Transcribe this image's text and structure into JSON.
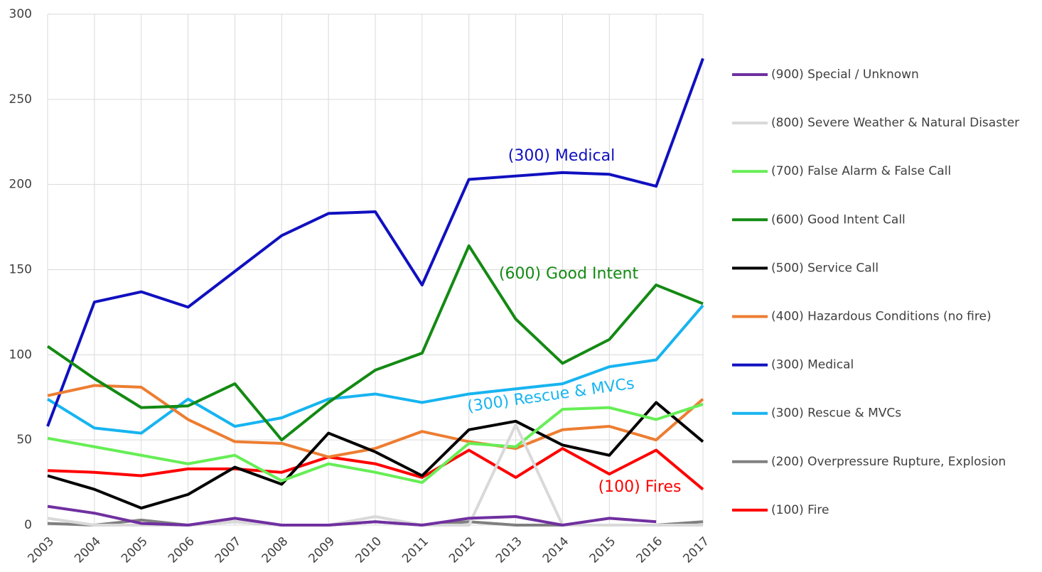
{
  "chart_data": {
    "type": "line",
    "categories": [
      "2003",
      "2004",
      "2005",
      "2006",
      "2007",
      "2008",
      "2009",
      "2010",
      "2011",
      "2012",
      "2013",
      "2014",
      "2015",
      "2016",
      "2017"
    ],
    "ylim": [
      0,
      300
    ],
    "yticks": [
      0,
      50,
      100,
      150,
      200,
      250,
      300
    ],
    "grid": true,
    "legend": "right",
    "series": [
      {
        "name": "(900) Special / Unknown",
        "color": "#7030a0",
        "values": [
          11,
          7,
          1,
          0,
          4,
          0,
          0,
          2,
          0,
          4,
          5,
          0,
          4,
          2,
          null
        ]
      },
      {
        "name": "(800) Severe Weather & Natural Disaster",
        "color": "#d9d9d9",
        "values": [
          4,
          0,
          0,
          0,
          2,
          0,
          0,
          5,
          0,
          0,
          59,
          0,
          0,
          0,
          0
        ]
      },
      {
        "name": "(700) False Alarm & False Call",
        "color": "#66ee55",
        "values": [
          51,
          46,
          41,
          36,
          41,
          26,
          36,
          31,
          25,
          48,
          46,
          68,
          69,
          62,
          71
        ]
      },
      {
        "name": "(600) Good Intent Call",
        "color": "#138a13",
        "values": [
          105,
          86,
          69,
          70,
          83,
          50,
          72,
          91,
          101,
          164,
          121,
          95,
          109,
          141,
          130
        ]
      },
      {
        "name": "(500) Service Call",
        "color": "#000000",
        "values": [
          29,
          21,
          10,
          18,
          34,
          24,
          54,
          43,
          29,
          56,
          61,
          47,
          41,
          72,
          49
        ]
      },
      {
        "name": "(400) Hazardous Conditions (no fire)",
        "color": "#ed7d31",
        "values": [
          76,
          82,
          81,
          62,
          49,
          48,
          40,
          45,
          55,
          49,
          45,
          56,
          58,
          50,
          74
        ]
      },
      {
        "name": "(300) Medical",
        "color": "#1010c0",
        "values": [
          58,
          131,
          137,
          128,
          149,
          170,
          183,
          184,
          141,
          203,
          205,
          207,
          206,
          199,
          274
        ]
      },
      {
        "name": "(300) Rescue & MVCs",
        "color": "#17b4f0",
        "values": [
          74,
          57,
          54,
          74,
          58,
          63,
          74,
          77,
          72,
          77,
          80,
          83,
          93,
          97,
          129
        ]
      },
      {
        "name": "(200) Overpressure Rupture, Explosion",
        "color": "#808080",
        "values": [
          1,
          0,
          3,
          0,
          2,
          0,
          0,
          2,
          0,
          2,
          0,
          0,
          0,
          0,
          2
        ]
      },
      {
        "name": "(100) Fire",
        "color": "#ff0000",
        "values": [
          32,
          31,
          29,
          33,
          33,
          31,
          40,
          36,
          28,
          44,
          28,
          45,
          30,
          44,
          21
        ]
      }
    ],
    "annotations": [
      {
        "text": "(300) Medical",
        "color": "#1010c0"
      },
      {
        "text": "(600) Good Intent",
        "color": "#138a13"
      },
      {
        "text": "(300) Rescue & MVCs",
        "color": "#17b4f0"
      },
      {
        "text": "(100) Fires",
        "color": "#ff0000"
      }
    ]
  }
}
